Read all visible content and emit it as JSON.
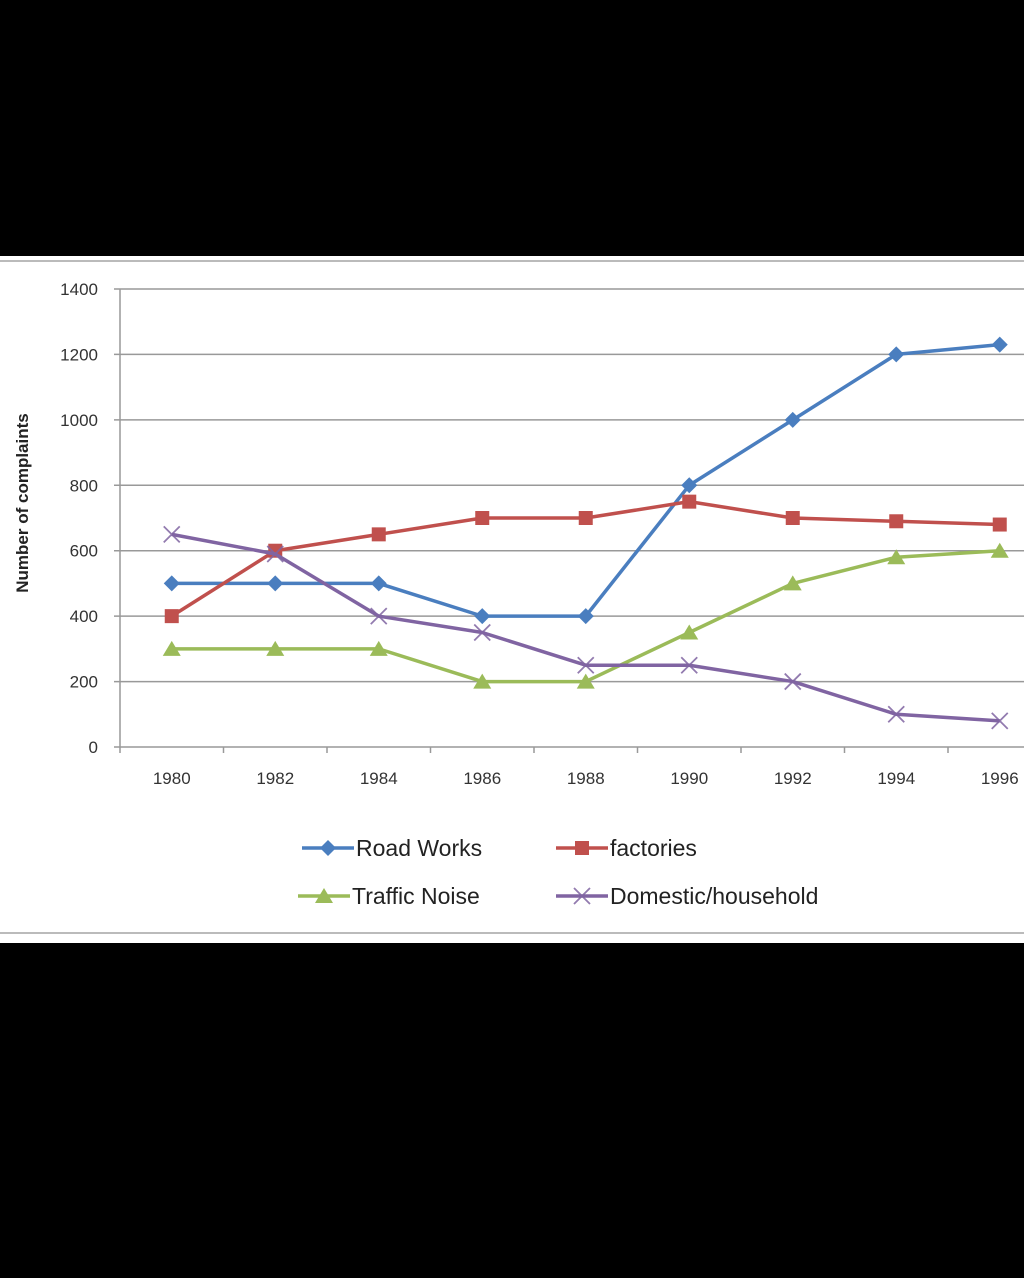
{
  "chart_data": {
    "type": "line",
    "title": "",
    "xlabel": "",
    "ylabel": "Number of complaints",
    "ylim": [
      0,
      1400
    ],
    "yticks": [
      "0",
      "200",
      "400",
      "600",
      "800",
      "1000",
      "1200",
      "1400"
    ],
    "categories": [
      "1980",
      "1982",
      "1984",
      "1986",
      "1988",
      "1990",
      "1992",
      "1994",
      "1996"
    ],
    "grid": true,
    "legend_position": "bottom",
    "series": [
      {
        "name": "Road Works",
        "color": "#4a7ebf",
        "marker": "diamond",
        "values": [
          500,
          500,
          500,
          400,
          400,
          800,
          1000,
          1200,
          1230
        ]
      },
      {
        "name": "factories",
        "color": "#c0504d",
        "marker": "square",
        "values": [
          400,
          600,
          650,
          700,
          700,
          750,
          700,
          690,
          680
        ]
      },
      {
        "name": "Traffic Noise",
        "color": "#9bbb59",
        "marker": "triangle",
        "values": [
          300,
          300,
          300,
          200,
          200,
          350,
          500,
          580,
          600
        ]
      },
      {
        "name": "Domestic/household",
        "color": "#8064a2",
        "marker": "x",
        "values": [
          650,
          590,
          400,
          350,
          250,
          250,
          200,
          100,
          80
        ]
      }
    ]
  }
}
